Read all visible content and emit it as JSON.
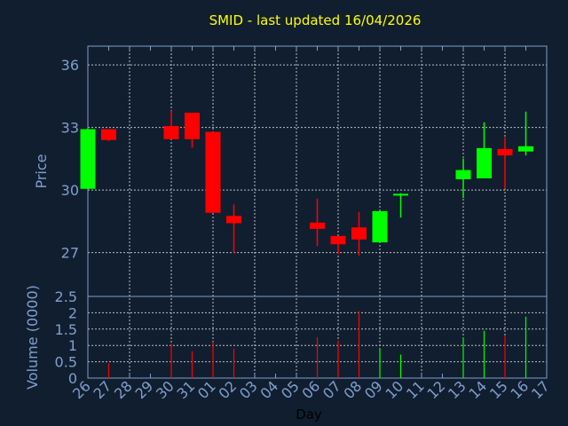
{
  "chart_data": [
    {
      "type": "candlestick",
      "title": "SMID - last updated 16/04/2026",
      "ylabel": "Price",
      "ylim": [
        24.9,
        36.9
      ],
      "yticks": [
        27,
        30,
        33,
        36
      ],
      "grid": true,
      "colors": {
        "up": "#00ff00",
        "down": "#ff0000"
      },
      "x_ticks": [
        "26",
        "27",
        "28",
        "29",
        "30",
        "31",
        "01",
        "02",
        "03",
        "04",
        "05",
        "06",
        "07",
        "08",
        "09",
        "10",
        "11",
        "12",
        "13",
        "14",
        "15",
        "16",
        "17"
      ],
      "candles": [
        {
          "day": "26",
          "open": 30.06,
          "high": 32.95,
          "low": 30.05,
          "close": 32.92
        },
        {
          "day": "27",
          "open": 32.92,
          "high": 32.92,
          "low": 32.35,
          "close": 32.4
        },
        {
          "day": "30",
          "open": 33.07,
          "high": 33.8,
          "low": 32.44,
          "close": 32.44
        },
        {
          "day": "31",
          "open": 33.71,
          "high": 33.71,
          "low": 32.03,
          "close": 32.44
        },
        {
          "day": "01",
          "open": 32.79,
          "high": 32.79,
          "low": 28.91,
          "close": 28.91
        },
        {
          "day": "02",
          "open": 28.76,
          "high": 29.31,
          "low": 26.97,
          "close": 28.41
        },
        {
          "day": "06",
          "open": 28.44,
          "high": 29.59,
          "low": 27.31,
          "close": 28.14
        },
        {
          "day": "07",
          "open": 27.8,
          "high": 27.8,
          "low": 26.93,
          "close": 27.4
        },
        {
          "day": "08",
          "open": 28.21,
          "high": 28.95,
          "low": 26.85,
          "close": 27.63
        },
        {
          "day": "09",
          "open": 27.49,
          "high": 28.99,
          "low": 27.49,
          "close": 28.99
        },
        {
          "day": "10",
          "open": 29.74,
          "high": 29.85,
          "low": 28.68,
          "close": 29.82
        },
        {
          "day": "13",
          "open": 30.52,
          "high": 31.51,
          "low": 29.62,
          "close": 30.96
        },
        {
          "day": "14",
          "open": 30.56,
          "high": 33.25,
          "low": 30.56,
          "close": 32.01
        },
        {
          "day": "15",
          "open": 31.97,
          "high": 32.53,
          "low": 30.06,
          "close": 31.66
        },
        {
          "day": "16",
          "open": 31.85,
          "high": 33.76,
          "low": 31.66,
          "close": 32.1
        }
      ]
    },
    {
      "type": "bar",
      "ylabel": "Volume (0000)",
      "xlabel": "Day",
      "ylim": [
        0,
        2.5
      ],
      "yticks": [
        0,
        0.5,
        1,
        1.5,
        2,
        2.5
      ],
      "grid": true,
      "volumes": [
        {
          "day": "27",
          "value": 0.45,
          "dir": "down"
        },
        {
          "day": "30",
          "value": 1.05,
          "dir": "down"
        },
        {
          "day": "31",
          "value": 0.82,
          "dir": "down"
        },
        {
          "day": "01",
          "value": 1.1,
          "dir": "down"
        },
        {
          "day": "02",
          "value": 0.9,
          "dir": "down"
        },
        {
          "day": "06",
          "value": 1.25,
          "dir": "down"
        },
        {
          "day": "07",
          "value": 1.15,
          "dir": "down"
        },
        {
          "day": "08",
          "value": 2.05,
          "dir": "down"
        },
        {
          "day": "09",
          "value": 0.9,
          "dir": "up"
        },
        {
          "day": "10",
          "value": 0.72,
          "dir": "up"
        },
        {
          "day": "13",
          "value": 1.25,
          "dir": "up"
        },
        {
          "day": "14",
          "value": 1.45,
          "dir": "up"
        },
        {
          "day": "15",
          "value": 1.3,
          "dir": "down"
        },
        {
          "day": "16",
          "value": 1.88,
          "dir": "up"
        }
      ]
    }
  ]
}
